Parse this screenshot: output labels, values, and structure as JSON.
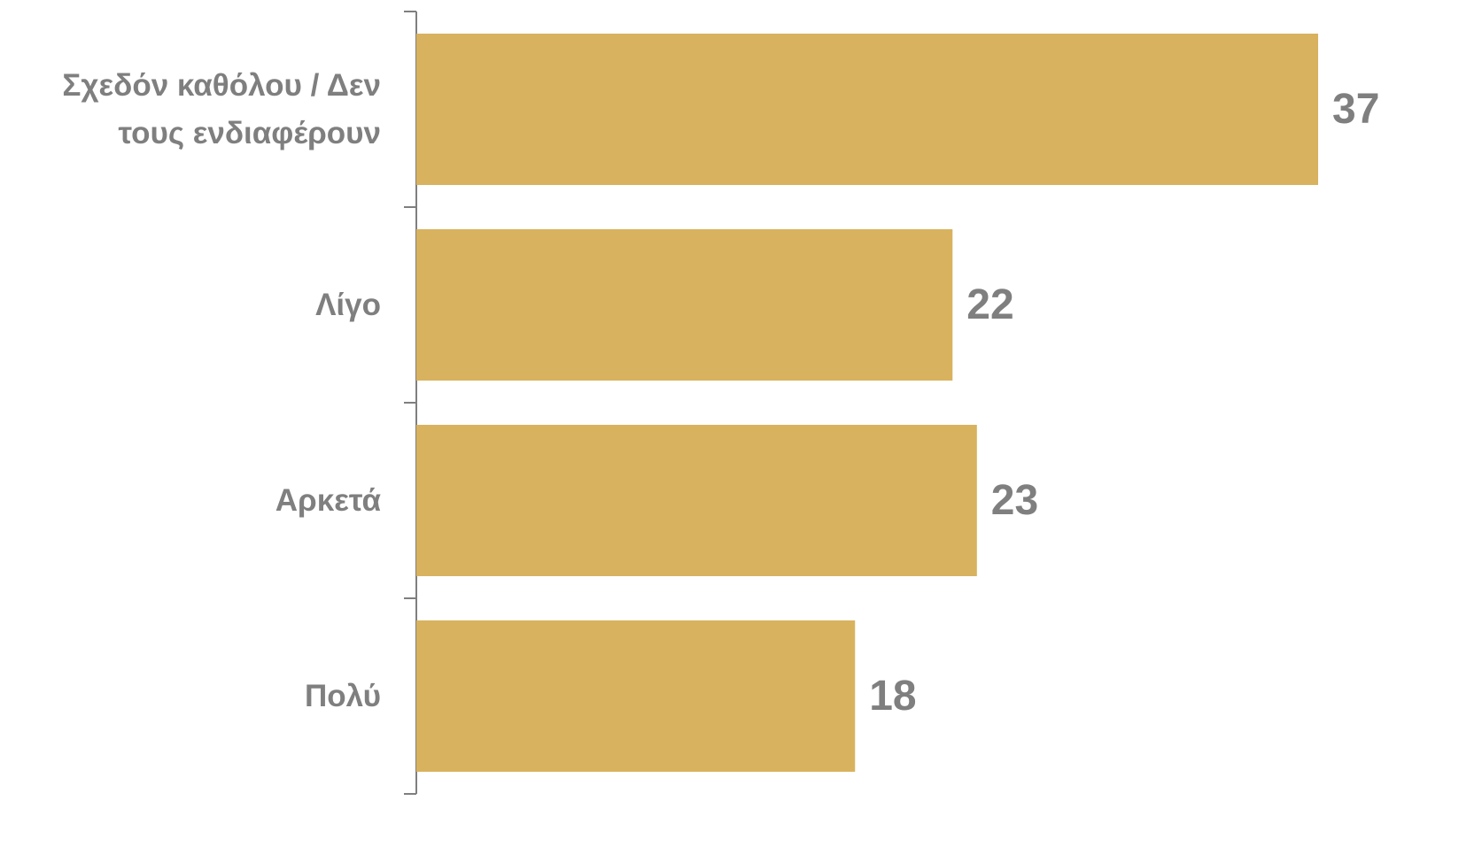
{
  "chart_data": {
    "type": "bar",
    "orientation": "horizontal",
    "categories": [
      "Σχεδόν καθόλου / Δεν τους ενδιαφέρουν",
      "Λίγο",
      "Αρκετά",
      "Πολύ"
    ],
    "values": [
      37,
      22,
      23,
      18
    ],
    "color": "#d8b25e"
  }
}
